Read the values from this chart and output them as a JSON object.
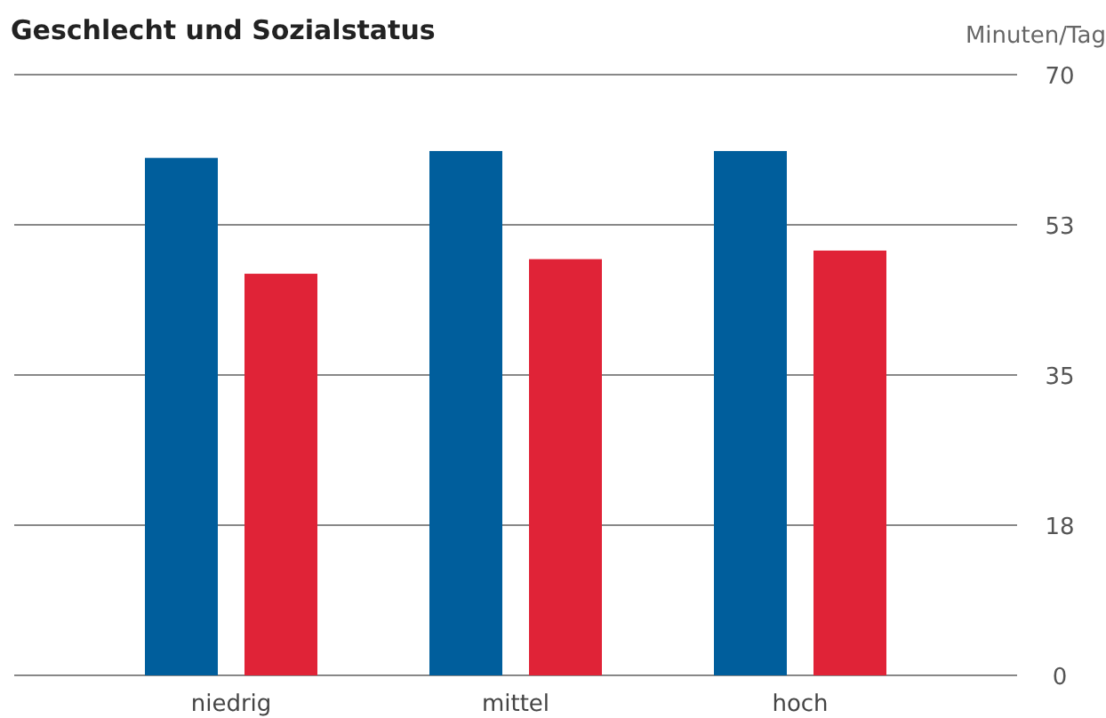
{
  "chart_data": {
    "type": "bar",
    "title": "Geschlecht und Sozialstatus",
    "ylabel": "Minuten/Tag",
    "categories": [
      "niedrig",
      "mittel",
      "hoch"
    ],
    "series": [
      {
        "color": "#005e9c",
        "values": [
          60.3,
          61.1,
          61.1
        ]
      },
      {
        "color": "#e02337",
        "values": [
          46.8,
          48.5,
          49.5
        ]
      }
    ],
    "ylim": [
      0,
      70
    ],
    "yticks": [
      0,
      {
        "value": 17.5,
        "label": "18"
      },
      35,
      {
        "value": 52.5,
        "label": "53"
      },
      70
    ],
    "grid": "y"
  }
}
